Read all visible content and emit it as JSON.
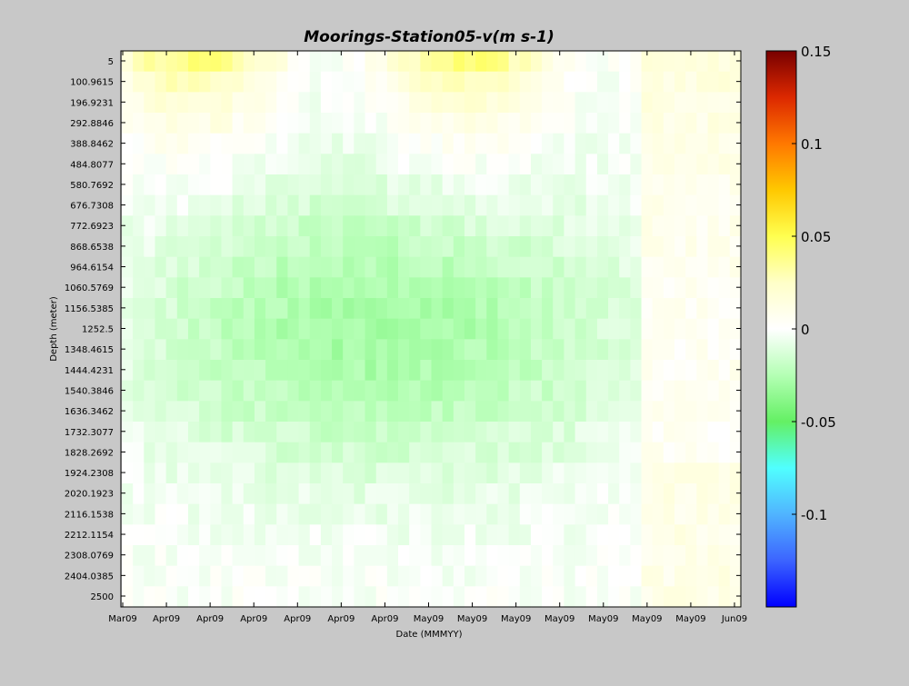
{
  "chart_data": {
    "type": "heatmap",
    "title": "Moorings-Station05-v(m s-1)",
    "xlabel": "Date (MMMYY)",
    "ylabel": "Depth (meter)",
    "y_tick_labels": [
      "5",
      "100.9615",
      "196.9231",
      "292.8846",
      "388.8462",
      "484.8077",
      "580.7692",
      "676.7308",
      "772.6923",
      "868.6538",
      "964.6154",
      "1060.5769",
      "1156.5385",
      "1252.5",
      "1348.4615",
      "1444.4231",
      "1540.3846",
      "1636.3462",
      "1732.3077",
      "1828.2692",
      "1924.2308",
      "2020.1923",
      "2116.1538",
      "2212.1154",
      "2308.0769",
      "2404.0385",
      "2500"
    ],
    "x_tick_labels": [
      "Mar09",
      "Apr09",
      "Apr09",
      "Apr09",
      "Apr09",
      "Apr09",
      "Apr09",
      "May09",
      "May09",
      "May09",
      "May09",
      "May09",
      "May09",
      "May09",
      "Jun09"
    ],
    "y_range": [
      5,
      2500
    ],
    "y_reversed": true,
    "colorbar": {
      "range": [
        -0.15,
        0.15
      ],
      "tick_labels": [
        "0.15",
        "0.1",
        "0.05",
        "0",
        "-0.05",
        "-0.1"
      ],
      "tick_values": [
        0.15,
        0.1,
        0.05,
        0,
        -0.05,
        -0.1
      ],
      "colormap": [
        "#0000ff",
        "#3c64ff",
        "#50b4ff",
        "#50ffff",
        "#64f064",
        "#b4ffb4",
        "#ffffff",
        "#ffffc8",
        "#ffff50",
        "#ffc800",
        "#ff7800",
        "#dc2800",
        "#780000"
      ]
    },
    "n_time_columns": 56,
    "n_depth_rows": 27,
    "grid": false
  }
}
